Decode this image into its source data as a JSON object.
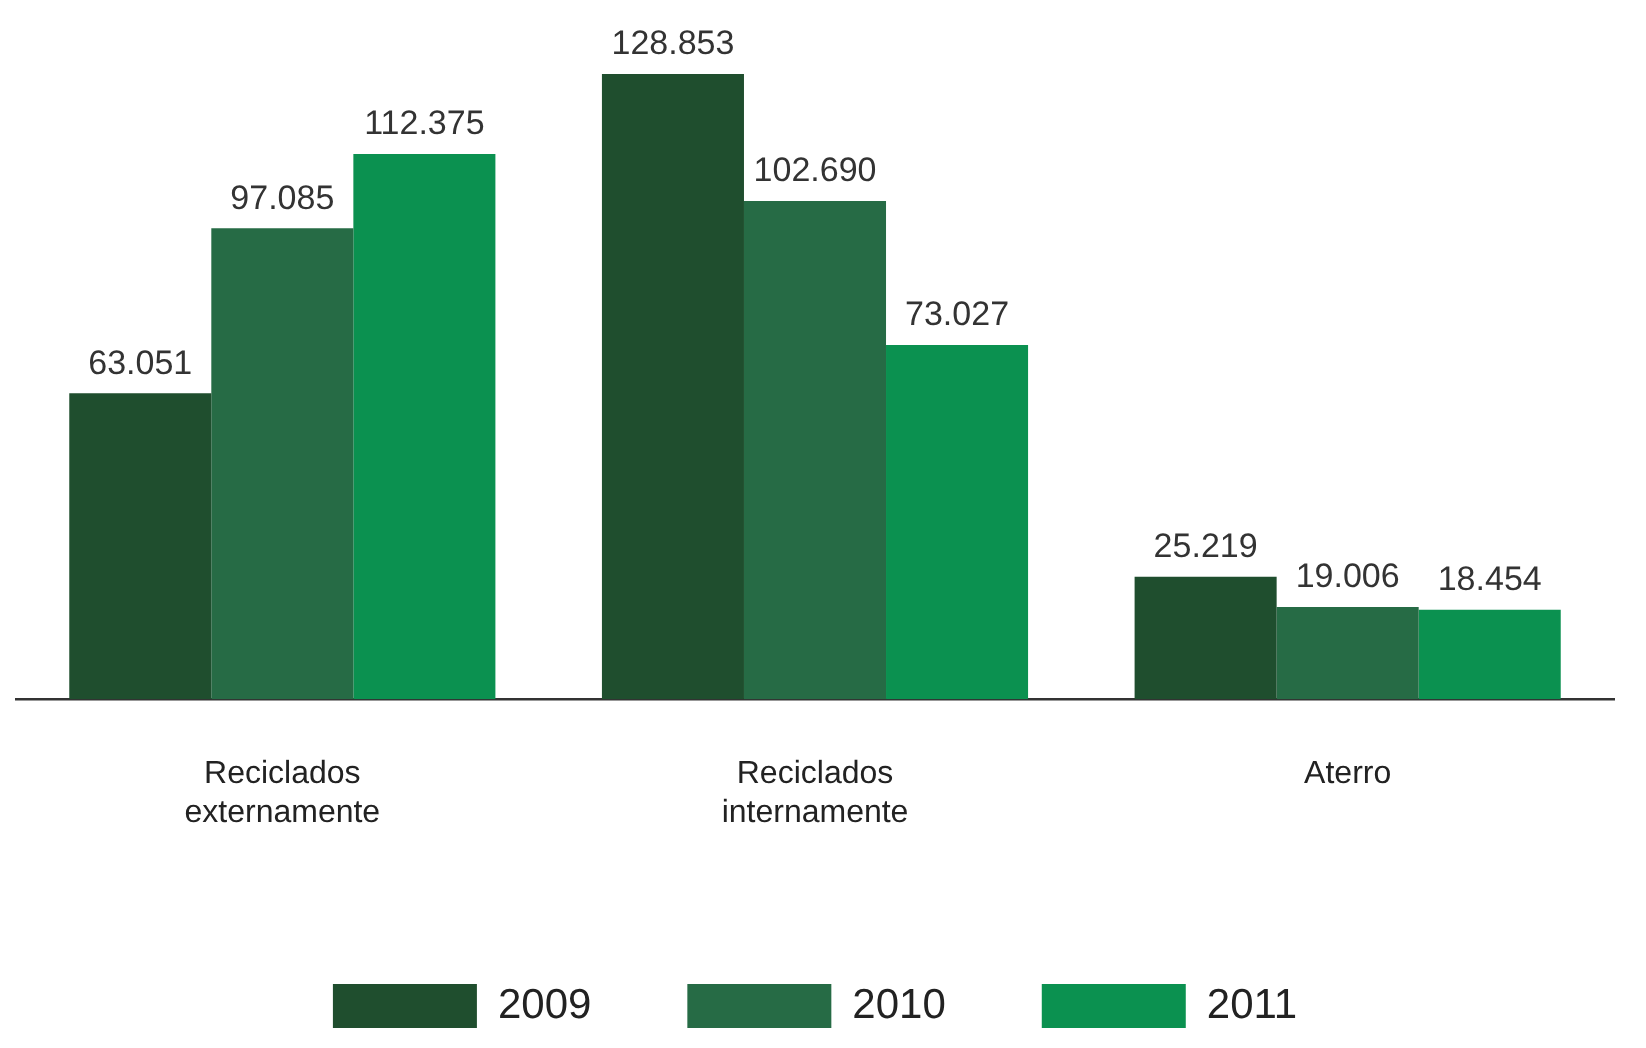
{
  "chart_data": {
    "type": "bar",
    "categories": [
      "Reciclados externamente",
      "Reciclados internamente",
      "Aterro"
    ],
    "series": [
      {
        "name": "2009",
        "color": "#1f4e2e",
        "values": [
          63051,
          128853,
          25219
        ],
        "value_labels": [
          "63.051",
          "128.853",
          "25.219"
        ]
      },
      {
        "name": "2010",
        "color": "#266b45",
        "values": [
          97085,
          102690,
          19006
        ],
        "value_labels": [
          "97.085",
          "102.690",
          "19.006"
        ]
      },
      {
        "name": "2011",
        "color": "#0b9150",
        "values": [
          112375,
          73027,
          18454
        ],
        "value_labels": [
          "112.375",
          "73.027",
          "18.454"
        ]
      }
    ],
    "grid": false,
    "legend": "bottom",
    "tick_labels": "x"
  }
}
